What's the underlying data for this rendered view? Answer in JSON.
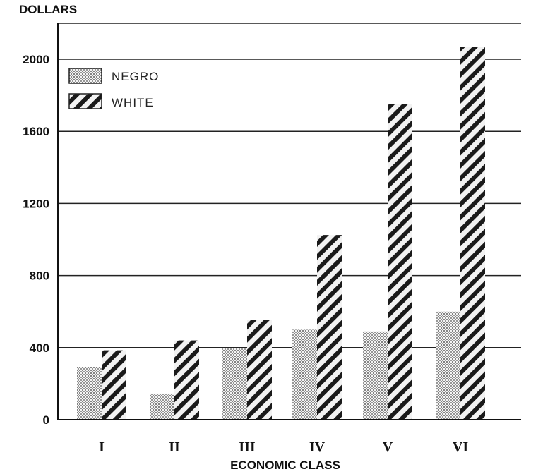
{
  "chart_data": {
    "type": "bar",
    "ylabel": "DOLLARS",
    "xlabel": "ECONOMIC CLASS",
    "categories": [
      "I",
      "II",
      "III",
      "IV",
      "V",
      "VI"
    ],
    "series": [
      {
        "name": "NEGRO",
        "pattern": "stipple",
        "values": [
          290,
          145,
          395,
          500,
          490,
          600
        ]
      },
      {
        "name": "WHITE",
        "pattern": "diagonal-hatch",
        "values": [
          385,
          440,
          555,
          1025,
          1750,
          2070
        ]
      }
    ],
    "ylim": [
      0,
      2200
    ],
    "yticks": [
      0,
      400,
      800,
      1200,
      1600,
      2000
    ],
    "grid": true,
    "legend_position": "top-left",
    "colors": {
      "ink": "#111111",
      "fill_background": "#f2f2f2"
    }
  }
}
